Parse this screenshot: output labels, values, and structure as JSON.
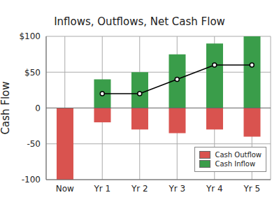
{
  "chart_data": {
    "type": "bar",
    "title": "Inflows, Outflows, Net Cash Flow",
    "y_label": "Cash Flow",
    "categories": [
      "Now",
      "Yr 1",
      "Yr 2",
      "Yr 3",
      "Yr 4",
      "Yr 5"
    ],
    "series": [
      {
        "name": "Cash Outflow",
        "color": "#d9534f",
        "values": [
          -100,
          -20,
          -30,
          -35,
          -30,
          -40
        ]
      },
      {
        "name": "Cash Inflow",
        "color": "#3a9d4a",
        "values": [
          0,
          40,
          50,
          75,
          90,
          100
        ]
      },
      {
        "type": "line",
        "color": "#000000",
        "marker": "circle",
        "values": [
          null,
          20,
          20,
          40,
          60,
          60
        ]
      }
    ],
    "ylim": [
      -100,
      100
    ],
    "yticks": [
      -100,
      -50,
      0,
      {
        "value": 50,
        "label": "$50"
      },
      {
        "value": 100,
        "label": "$100"
      }
    ],
    "stacked": true,
    "grid": true,
    "legend": "lower right"
  }
}
